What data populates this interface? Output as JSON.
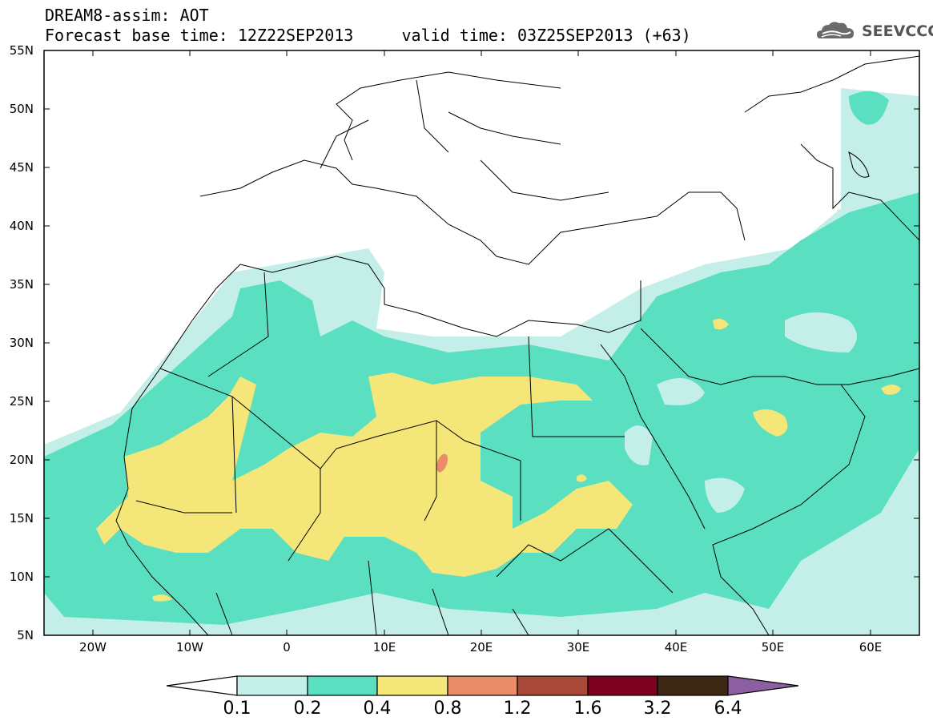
{
  "header": {
    "title_line1": "DREAM8-assim: AOT",
    "title_line2": "Forecast base time: 12Z22SEP2013     valid time: 03Z25SEP2013 (+63)",
    "logo_text": "SEEVCCC",
    "logo_icon": "cloud-icon"
  },
  "map": {
    "variable": "AOT",
    "lat_labels": [
      "55N",
      "50N",
      "45N",
      "40N",
      "35N",
      "30N",
      "25N",
      "20N",
      "15N",
      "10N",
      "5N"
    ],
    "lon_labels": [
      "20W",
      "10W",
      "0",
      "10E",
      "20E",
      "30E",
      "40E",
      "50E",
      "60E"
    ],
    "lat_range": [
      5,
      55
    ],
    "lon_range": [
      -25,
      65
    ]
  },
  "colorbar": {
    "levels": [
      "0.1",
      "0.2",
      "0.4",
      "0.8",
      "1.2",
      "1.6",
      "3.2",
      "6.4"
    ],
    "colors": [
      "#ffffff",
      "#c4eee8",
      "#5ae0c0",
      "#f4e678",
      "#e88c6a",
      "#a84838",
      "#7c0020",
      "#3c2814",
      "#8c60a0"
    ]
  }
}
